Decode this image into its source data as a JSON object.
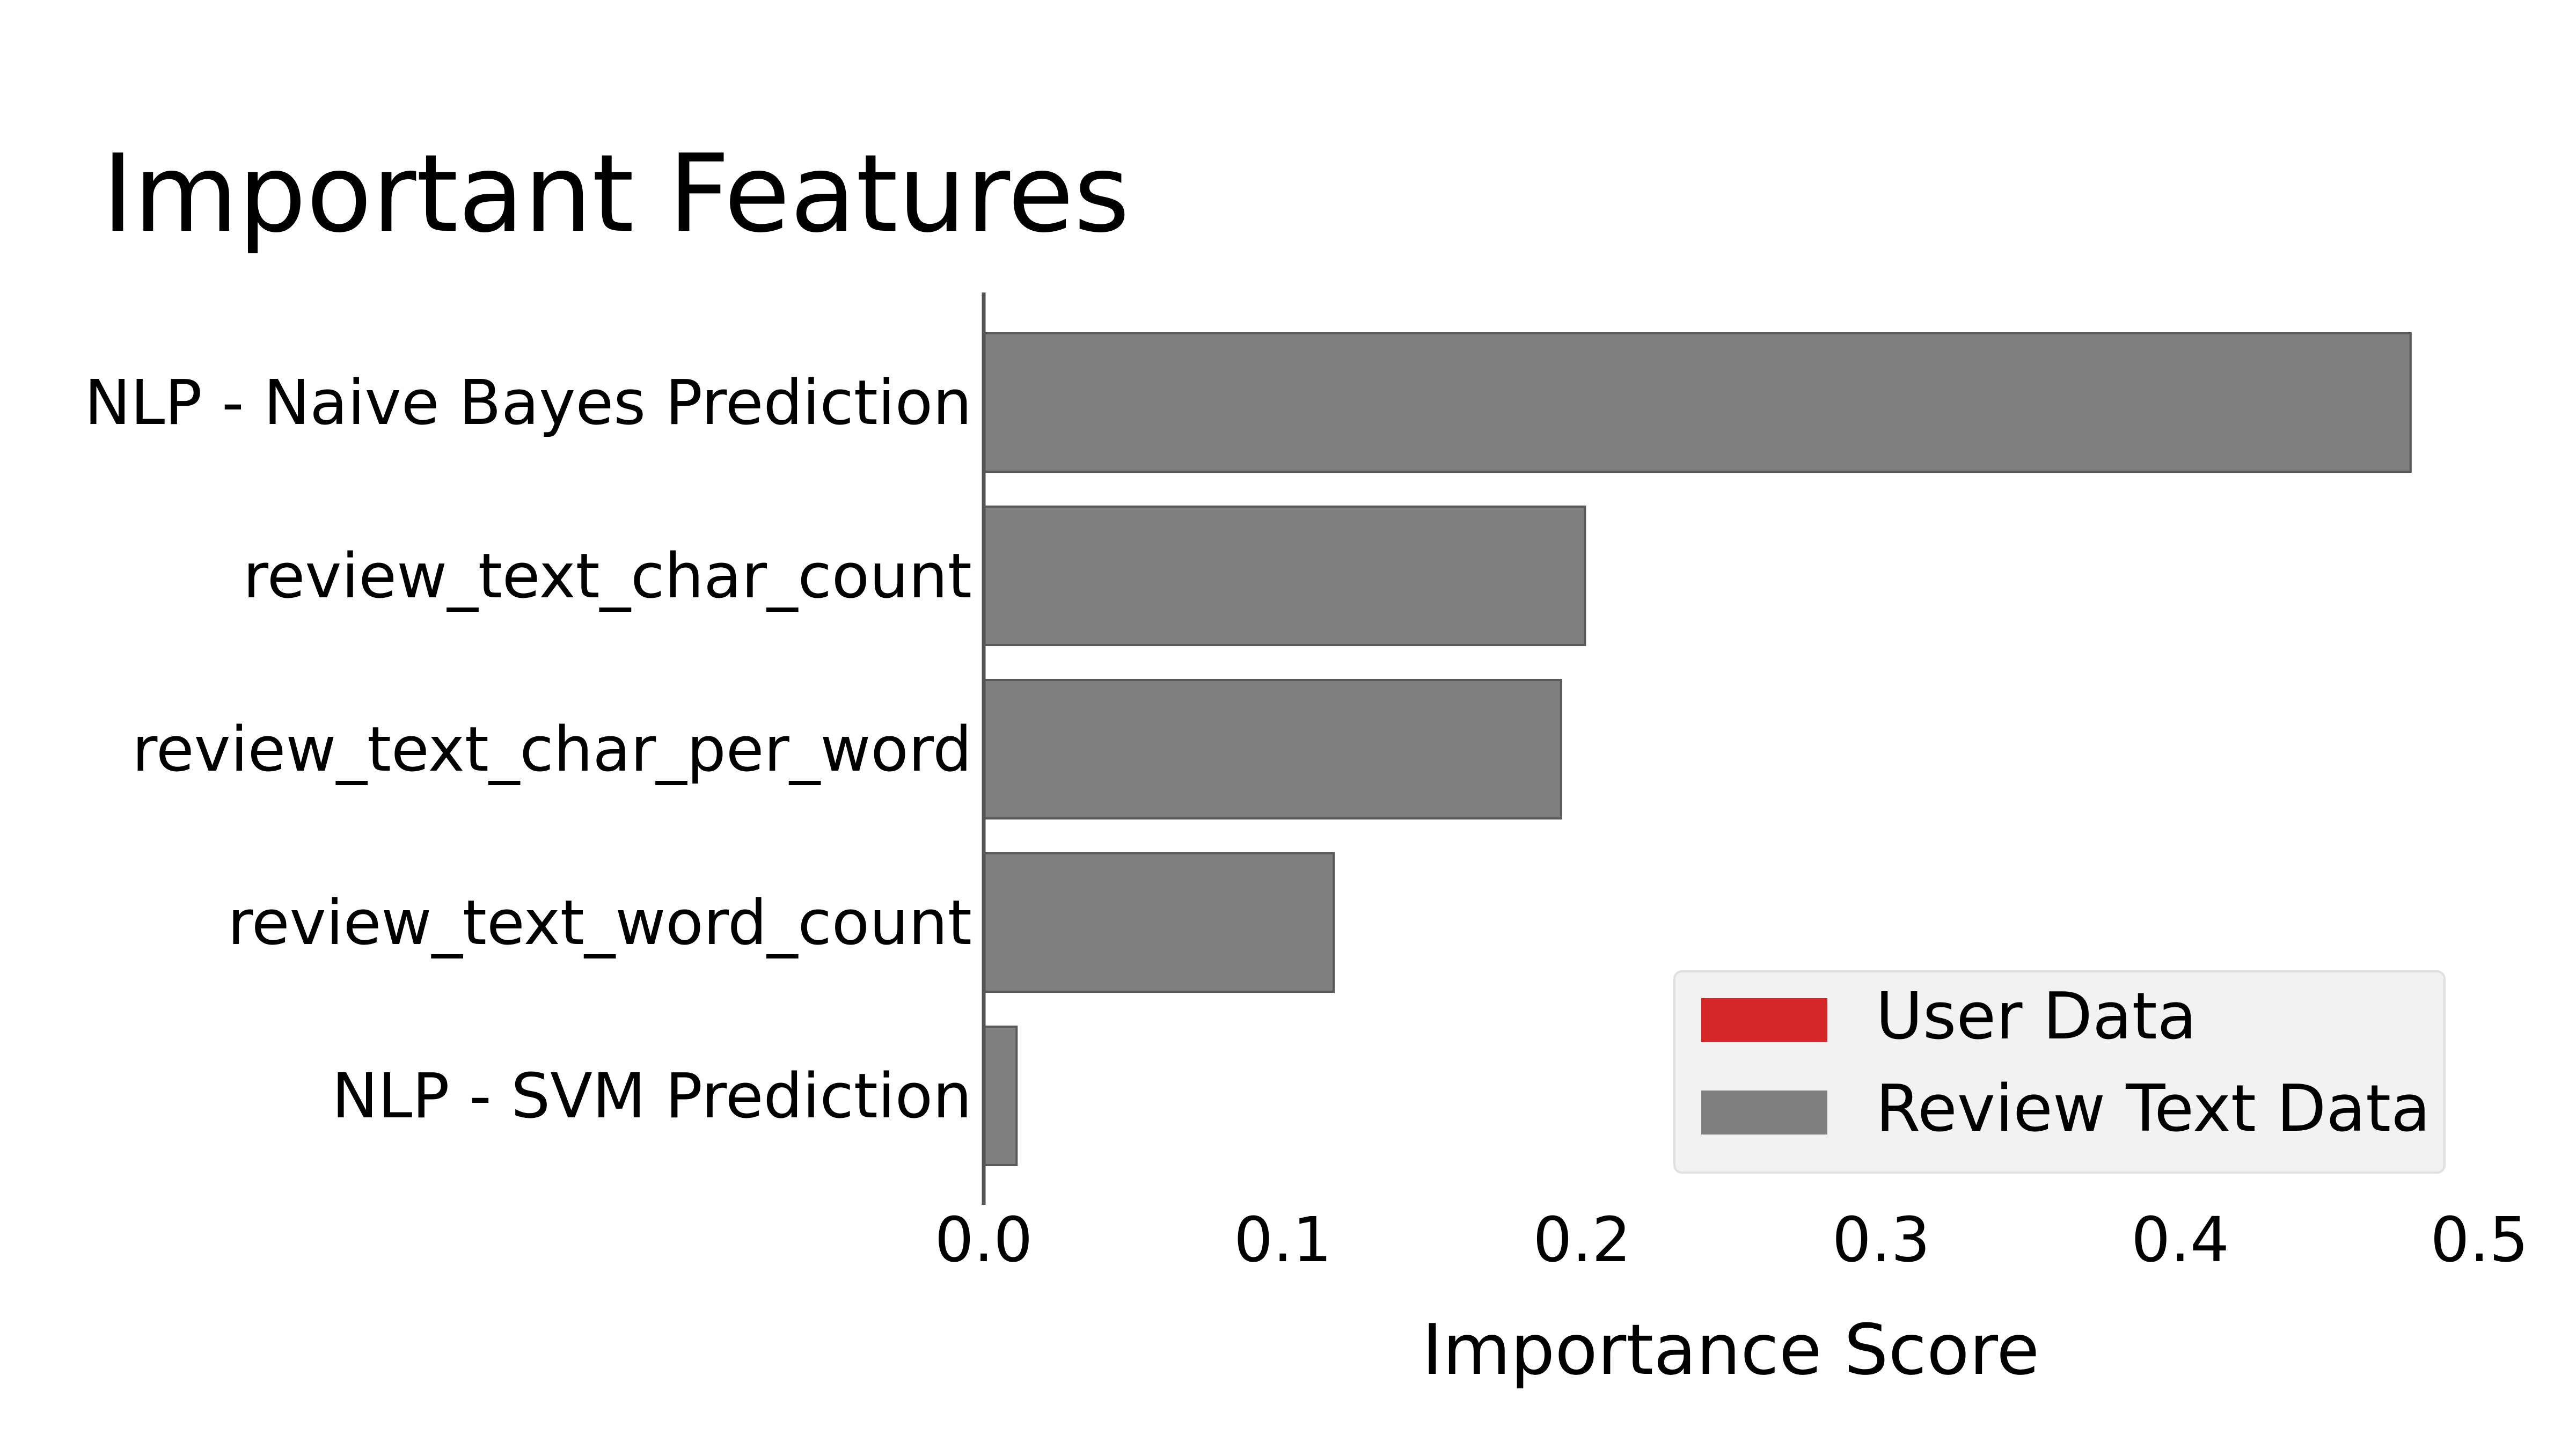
{
  "chart_data": {
    "type": "bar",
    "orientation": "horizontal",
    "title": "Important Features",
    "xlabel": "Importance Score",
    "ylabel": "",
    "xlim": [
      0.0,
      0.5
    ],
    "xticks": [
      "0.0",
      "0.1",
      "0.2",
      "0.3",
      "0.4",
      "0.5"
    ],
    "grid": false,
    "categories": [
      "NLP - Naive Bayes Prediction",
      "review_text_char_count",
      "review_text_char_per_word",
      "review_text_word_count",
      "NLP - SVM Prediction"
    ],
    "values": [
      0.477,
      0.201,
      0.193,
      0.117,
      0.011
    ],
    "bar_groups": [
      "Review Text Data",
      "Review Text Data",
      "Review Text Data",
      "Review Text Data",
      "Review Text Data"
    ],
    "legend": {
      "placement": "lower-right",
      "entries": [
        {
          "label": "User Data",
          "color": "#d62728"
        },
        {
          "label": "Review Text Data",
          "color": "#7f7f7f"
        }
      ]
    },
    "colors": {
      "bar": "#7f7f7f",
      "bar_edge": "#5a5a5a",
      "axis": "#555555",
      "legend_bg": "#f2f2f2"
    }
  }
}
